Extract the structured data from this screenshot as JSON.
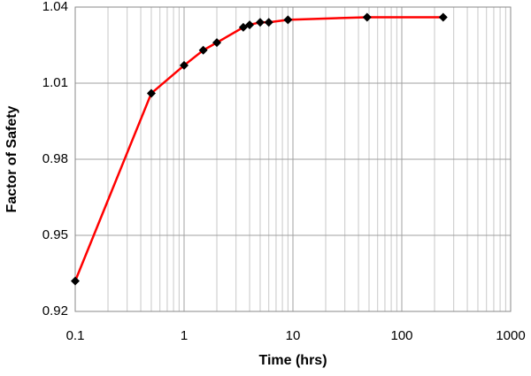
{
  "chart_data": {
    "type": "line",
    "x_label": "Time (hrs)",
    "y_label": "Factor of Safety",
    "x": [
      0.1,
      0.5,
      1,
      1.5,
      2,
      3.5,
      4,
      5,
      6,
      9,
      48,
      240
    ],
    "series": [
      {
        "color": "#ff0000",
        "marker_color": "#000000",
        "values": [
          0.932,
          1.006,
          1.017,
          1.023,
          1.026,
          1.032,
          1.033,
          1.034,
          1.034,
          1.035,
          1.036,
          1.036
        ]
      }
    ],
    "xlim": [
      0.1,
      1000
    ],
    "xticks": [
      0.1,
      1,
      10,
      100,
      1000
    ],
    "log_x": true,
    "ylim": [
      0.92,
      1.04
    ],
    "yticks": [
      0.92,
      0.95,
      0.98,
      1.01,
      1.04
    ],
    "grid": true,
    "minor_grid": true
  }
}
